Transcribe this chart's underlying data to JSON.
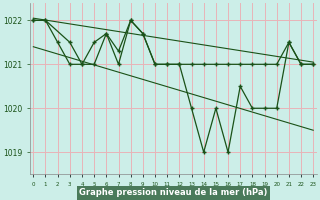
{
  "xlabel": "Graphe pression niveau de la mer (hPa)",
  "background_color": "#cceee8",
  "label_bg_color": "#4a7a5a",
  "grid_color": "#e8b4b8",
  "line_color": "#1a5218",
  "ylim": [
    1018.5,
    1022.4
  ],
  "yticks": [
    1019,
    1020,
    1021,
    1022
  ],
  "xlim": [
    -0.3,
    23.3
  ],
  "xticks": [
    0,
    1,
    2,
    3,
    4,
    5,
    6,
    7,
    8,
    9,
    10,
    11,
    12,
    13,
    14,
    15,
    16,
    17,
    18,
    19,
    20,
    21,
    22,
    23
  ],
  "line1_x": [
    0,
    1,
    2,
    3,
    4,
    5,
    6,
    7,
    8,
    9,
    10,
    11,
    12,
    13,
    14,
    15,
    16,
    17,
    18,
    19,
    20,
    21,
    22,
    23
  ],
  "line1_y": [
    1022.0,
    1022.0,
    1021.5,
    1021.0,
    1021.0,
    1021.5,
    1021.7,
    1021.3,
    1022.0,
    1021.7,
    1021.0,
    1021.0,
    1021.0,
    1021.0,
    1021.0,
    1021.0,
    1021.0,
    1021.0,
    1021.0,
    1021.0,
    1021.0,
    1021.5,
    1021.0,
    1021.0
  ],
  "line2_x": [
    0,
    1,
    3,
    4,
    5,
    6,
    7,
    8,
    9,
    10,
    11,
    12,
    13,
    14,
    15,
    16,
    17,
    18,
    19,
    20,
    21,
    22,
    23
  ],
  "line2_y": [
    1022.0,
    1022.0,
    1021.5,
    1021.0,
    1021.0,
    1021.7,
    1021.0,
    1022.0,
    1021.7,
    1021.0,
    1021.0,
    1021.0,
    1020.0,
    1019.0,
    1020.0,
    1019.0,
    1020.5,
    1020.0,
    1020.0,
    1020.0,
    1021.5,
    1021.0,
    1021.0
  ],
  "trend1_x": [
    0,
    23
  ],
  "trend1_y": [
    1022.05,
    1021.05
  ],
  "trend2_x": [
    0,
    23
  ],
  "trend2_y": [
    1021.4,
    1019.5
  ]
}
